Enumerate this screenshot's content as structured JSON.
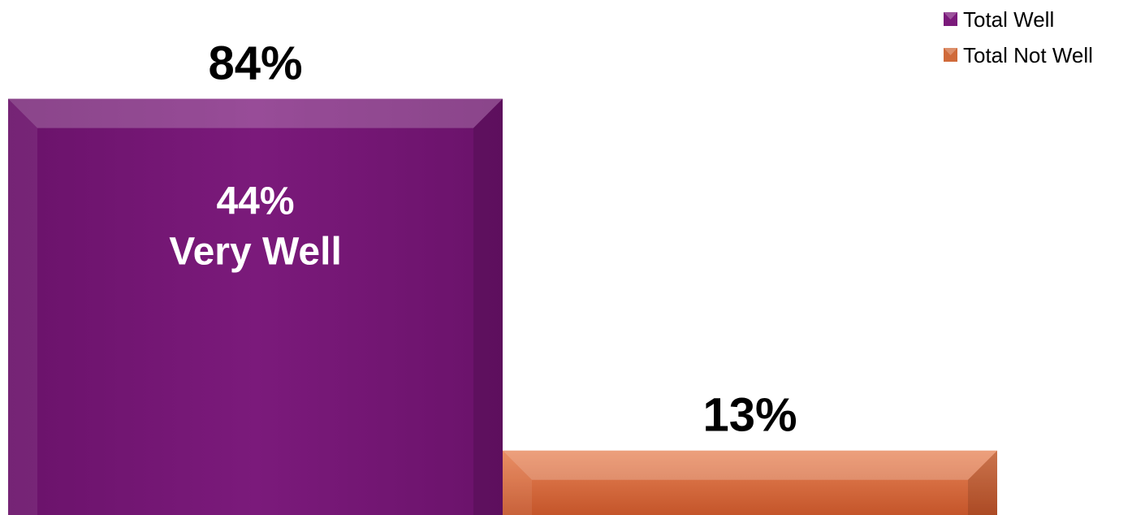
{
  "chart_data": {
    "type": "bar",
    "categories": [
      "Total Well",
      "Total Not Well"
    ],
    "series": [
      {
        "name": "Total Well",
        "values": [
          84,
          null
        ],
        "color": "#7B1A7B"
      },
      {
        "name": "Total Not Well",
        "values": [
          null,
          13
        ],
        "color": "#D06A3A"
      }
    ],
    "data_labels": [
      "84%",
      "13%"
    ],
    "inner_label": {
      "value": 44,
      "text_value": "44%",
      "text_caption": "Very Well"
    },
    "ylim": [
      0,
      100
    ],
    "legend": {
      "position": "top-right",
      "entries": [
        "Total Well",
        "Total Not Well"
      ]
    },
    "title": "",
    "xlabel": "",
    "ylabel": "",
    "grid": false
  }
}
